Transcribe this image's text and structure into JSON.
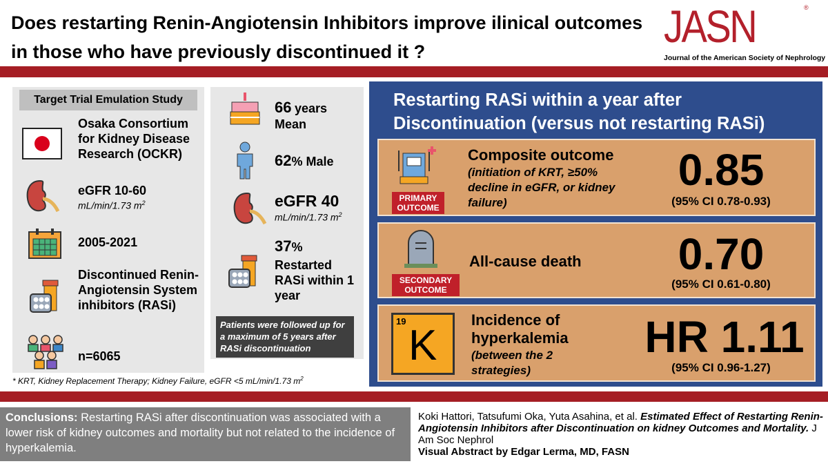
{
  "header": {
    "title": "Does restarting Renin-Angiotensin Inhibitors improve ilinical outcomes in those who have previously discontinued it ?",
    "logo": "JASN",
    "logo_mark": "®",
    "journal": "Journal of the American Society of Nephrology"
  },
  "study": {
    "heading": "Target Trial Emulation Study",
    "cohort": "Osaka Consortium for Kidney Disease Research (OCKR)",
    "egfr": "eGFR 10-60",
    "egfr_unit": "mL/min/1.73 m",
    "egfr_unit_sup": "2",
    "period": "2005-2021",
    "population": "Discontinued Renin-Angiotensin System inhibitors (RASi)",
    "n": "n=6065"
  },
  "characteristics": {
    "age": "66",
    "age_unit": "years",
    "age_stat": "Mean",
    "male": "62",
    "male_label": "% Male",
    "egfr": "eGFR 40",
    "egfr_unit": "mL/min/1.73 m",
    "egfr_unit_sup": "2",
    "restarted": "37",
    "restarted_unit": "%",
    "restarted_label": "Restarted RASi within 1 year",
    "follow_up": "Patients were followed up for a maximum of 5 years after RASi discontinuation"
  },
  "results": {
    "heading": "Restarting RASi within a year after Discontinuation (versus not restarting RASi)",
    "outcomes": [
      {
        "tag": "PRIMARY OUTCOME",
        "name": "Composite outcome",
        "detail": "(initiation of KRT, ≥50% decline in eGFR, or kidney failure)",
        "estimate": "0.85",
        "ci": "(95% CI 0.78-0.93)"
      },
      {
        "tag": "SECONDARY OUTCOME",
        "name": "All-cause death",
        "estimate": "0.70",
        "ci": "(95% CI 0.61-0.80)"
      },
      {
        "name": "Incidence of hyperkalemia",
        "detail": "(between the 2 strategies)",
        "estimate": "HR 1.11",
        "ci": "(95% CI 0.96-1.27)"
      }
    ]
  },
  "element_icon": {
    "atomic_number": "19",
    "symbol": "K"
  },
  "footnote": {
    "text": "* KRT, Kidney Replacement Therapy; Kidney Failure, eGFR <5 mL/min/1.73 m",
    "sup": "2"
  },
  "conclusion": {
    "label": "Conclusions:",
    "text": "Restarting RASi after discontinuation was associated with a lower risk of kidney outcomes and mortality but not related to the incidence of hyperkalemia."
  },
  "citation": {
    "authors": "Koki Hattori, Tatsufumi Oka, Yuta Asahina, et al.",
    "title": "Estimated Effect of Restarting Renin-Angiotensin Inhibitors after Discontinuation on kidney Outcomes and Mortality.",
    "journal": "J Am Soc Nephrol",
    "credit": "Visual Abstract by Edgar Lerma, MD, FASN"
  }
}
